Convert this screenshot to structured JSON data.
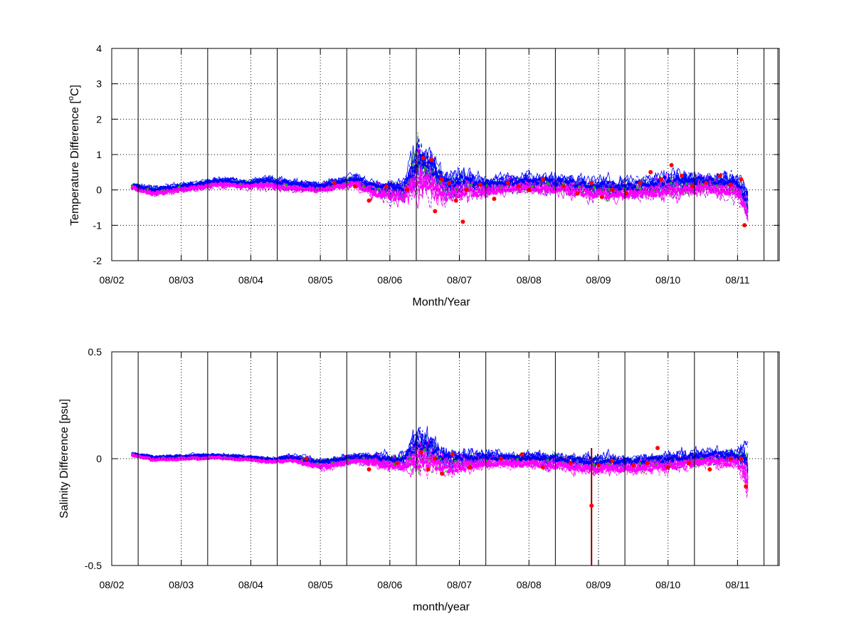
{
  "chart_data": [
    {
      "type": "line",
      "xlabel": "Month/Year",
      "ylabel": "Temperature Difference [°C]",
      "ylabel_parts": {
        "pre": "Temperature Difference [",
        "sup": "o",
        "post": "C]"
      },
      "ylim": [
        -2,
        4
      ],
      "yticks": [
        -2,
        -1,
        0,
        1,
        2,
        3,
        4
      ],
      "ytick_labels": [
        "-2",
        "-1",
        "0",
        "1",
        "2",
        "3",
        "4"
      ],
      "xlim": [
        0,
        9.6
      ],
      "xticks": [
        0,
        1,
        2,
        3,
        4,
        5,
        6,
        7,
        8,
        9
      ],
      "xtick_labels": [
        "08/02",
        "08/03",
        "08/04",
        "08/05",
        "08/06",
        "08/07",
        "08/08",
        "08/09",
        "08/10",
        "08/11"
      ],
      "vertical_lines_x": [
        0.38,
        1.38,
        2.38,
        3.38,
        4.38,
        5.38,
        6.38,
        7.38,
        8.38,
        9.38,
        9.58
      ],
      "grid": "dotted",
      "colors": {
        "blue": "#0000ff",
        "green": "#22a022",
        "magenta": "#ff00ff",
        "red": "#ff0000",
        "purple": "#9900cc"
      },
      "envelope": {
        "x": [
          0.3,
          0.6,
          1.0,
          1.5,
          2.0,
          2.3,
          2.6,
          3.0,
          3.5,
          3.8,
          4.2,
          4.4,
          4.6,
          4.8,
          5.0,
          5.3,
          5.6,
          6.0,
          6.5,
          7.0,
          7.5,
          8.0,
          8.5,
          9.0,
          9.15
        ],
        "center": [
          0.1,
          -0.05,
          0.05,
          0.2,
          0.15,
          0.2,
          0.1,
          0.05,
          0.25,
          0.0,
          -0.1,
          0.6,
          0.4,
          0.0,
          0.1,
          0.05,
          0.1,
          0.15,
          0.1,
          0.0,
          0.0,
          0.1,
          0.15,
          0.1,
          -0.5
        ],
        "amp": [
          0.1,
          0.15,
          0.15,
          0.15,
          0.15,
          0.2,
          0.2,
          0.15,
          0.2,
          0.3,
          0.4,
          0.9,
          0.7,
          0.5,
          0.5,
          0.35,
          0.3,
          0.3,
          0.35,
          0.35,
          0.35,
          0.45,
          0.35,
          0.4,
          0.6
        ]
      },
      "red_points": [
        [
          4.25,
          0.0
        ],
        [
          4.48,
          0.9
        ],
        [
          4.6,
          0.85
        ],
        [
          4.65,
          -0.6
        ],
        [
          4.75,
          0.3
        ],
        [
          4.85,
          0.2
        ],
        [
          4.95,
          -0.3
        ],
        [
          5.05,
          -0.9
        ],
        [
          5.1,
          0.0
        ],
        [
          5.3,
          0.15
        ],
        [
          5.5,
          -0.25
        ],
        [
          5.7,
          0.2
        ],
        [
          5.85,
          0.1
        ],
        [
          6.0,
          0.0
        ],
        [
          6.2,
          0.3
        ],
        [
          6.5,
          0.1
        ],
        [
          6.7,
          -0.1
        ],
        [
          6.9,
          0.2
        ],
        [
          7.05,
          -0.2
        ],
        [
          7.2,
          0.0
        ],
        [
          7.4,
          -0.1
        ],
        [
          7.6,
          0.2
        ],
        [
          7.75,
          0.5
        ],
        [
          7.9,
          0.3
        ],
        [
          8.05,
          0.7
        ],
        [
          8.2,
          0.4
        ],
        [
          8.35,
          0.1
        ],
        [
          8.55,
          0.2
        ],
        [
          8.75,
          0.4
        ],
        [
          8.9,
          0.15
        ],
        [
          9.05,
          0.3
        ],
        [
          9.1,
          -1.0
        ],
        [
          3.95,
          0.1
        ],
        [
          3.7,
          -0.3
        ],
        [
          3.5,
          0.1
        ],
        [
          3.2,
          0.2
        ]
      ]
    },
    {
      "type": "line",
      "xlabel": "month/year",
      "ylabel": "Salinity Difference [psu]",
      "ylim": [
        -0.5,
        0.5
      ],
      "yticks": [
        -0.5,
        0,
        0.5
      ],
      "ytick_labels": [
        "-0.5",
        "0",
        "0.5"
      ],
      "xlim": [
        0,
        9.6
      ],
      "xticks": [
        0,
        1,
        2,
        3,
        4,
        5,
        6,
        7,
        8,
        9
      ],
      "xtick_labels": [
        "08/02",
        "08/03",
        "08/04",
        "08/05",
        "08/06",
        "08/07",
        "08/08",
        "08/09",
        "08/10",
        "08/11"
      ],
      "vertical_lines_x": [
        0.38,
        1.38,
        2.38,
        3.38,
        4.38,
        5.38,
        6.38,
        7.38,
        8.38,
        9.38,
        9.58
      ],
      "grid": "dotted",
      "colors": {
        "blue": "#0000ff",
        "green": "#22a022",
        "magenta": "#ff00ff",
        "red": "#ff0000",
        "darkred": "#8b0000"
      },
      "envelope": {
        "x": [
          0.3,
          0.6,
          1.0,
          1.5,
          2.0,
          2.3,
          2.6,
          3.0,
          3.5,
          3.8,
          4.2,
          4.4,
          4.6,
          4.8,
          5.0,
          5.3,
          5.6,
          6.0,
          6.5,
          7.0,
          7.5,
          8.0,
          8.5,
          9.0,
          9.15
        ],
        "center": [
          0.02,
          0.0,
          0.005,
          0.01,
          0.0,
          -0.01,
          0.0,
          -0.03,
          0.0,
          -0.01,
          -0.02,
          0.03,
          0.02,
          -0.02,
          -0.02,
          -0.01,
          -0.01,
          -0.01,
          -0.02,
          -0.03,
          -0.03,
          -0.02,
          0.0,
          0.0,
          -0.05
        ],
        "amp": [
          0.01,
          0.015,
          0.015,
          0.015,
          0.015,
          0.015,
          0.02,
          0.03,
          0.03,
          0.04,
          0.05,
          0.12,
          0.1,
          0.07,
          0.06,
          0.05,
          0.04,
          0.04,
          0.05,
          0.05,
          0.05,
          0.05,
          0.05,
          0.05,
          0.15
        ]
      },
      "red_points": [
        [
          2.8,
          0.0
        ],
        [
          3.7,
          -0.05
        ],
        [
          4.1,
          -0.02
        ],
        [
          4.45,
          0.03
        ],
        [
          4.55,
          -0.05
        ],
        [
          4.65,
          0.0
        ],
        [
          4.75,
          -0.07
        ],
        [
          4.9,
          0.02
        ],
        [
          5.15,
          -0.04
        ],
        [
          5.6,
          0.0
        ],
        [
          5.9,
          0.02
        ],
        [
          6.2,
          -0.04
        ],
        [
          6.6,
          -0.02
        ],
        [
          7.0,
          -0.03
        ],
        [
          7.2,
          -0.01
        ],
        [
          7.5,
          -0.03
        ],
        [
          7.7,
          -0.02
        ],
        [
          7.85,
          0.05
        ],
        [
          8.0,
          -0.04
        ],
        [
          8.3,
          -0.02
        ],
        [
          8.6,
          -0.05
        ],
        [
          8.9,
          0.0
        ],
        [
          9.05,
          0.0
        ],
        [
          9.12,
          -0.13
        ],
        [
          6.9,
          -0.22
        ]
      ],
      "outlier_line_x": 6.9
    }
  ]
}
